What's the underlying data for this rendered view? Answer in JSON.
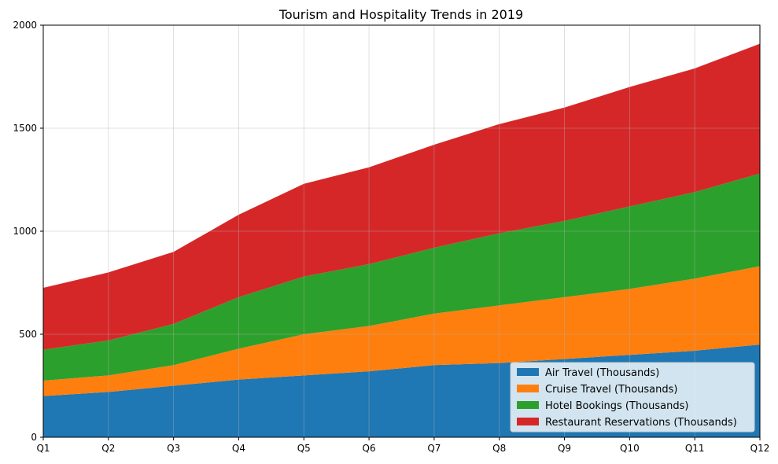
{
  "chart_data": {
    "type": "area",
    "stacked": true,
    "title": "Tourism and Hospitality Trends in 2019",
    "xlabel": "",
    "ylabel": "",
    "categories": [
      "Q1",
      "Q2",
      "Q3",
      "Q4",
      "Q5",
      "Q6",
      "Q7",
      "Q8",
      "Q9",
      "Q10",
      "Q11",
      "Q12"
    ],
    "ylim": [
      0,
      2000
    ],
    "yticks": [
      0,
      500,
      1000,
      1500,
      2000
    ],
    "grid": true,
    "legend_position": "lower-right",
    "series": [
      {
        "name": "Air Travel (Thousands)",
        "color": "#1f77b4",
        "values": [
          200,
          220,
          250,
          280,
          300,
          320,
          350,
          360,
          380,
          400,
          420,
          450
        ]
      },
      {
        "name": "Cruise Travel (Thousands)",
        "color": "#ff7f0e",
        "values": [
          75,
          80,
          100,
          150,
          200,
          220,
          250,
          280,
          300,
          320,
          350,
          380
        ]
      },
      {
        "name": "Hotel Bookings (Thousands)",
        "color": "#2ca02c",
        "values": [
          150,
          170,
          200,
          250,
          280,
          300,
          320,
          350,
          370,
          400,
          420,
          450
        ]
      },
      {
        "name": "Restaurant Reservations (Thousands)",
        "color": "#d62728",
        "values": [
          300,
          330,
          350,
          400,
          450,
          470,
          500,
          530,
          550,
          580,
          600,
          630
        ]
      }
    ]
  }
}
